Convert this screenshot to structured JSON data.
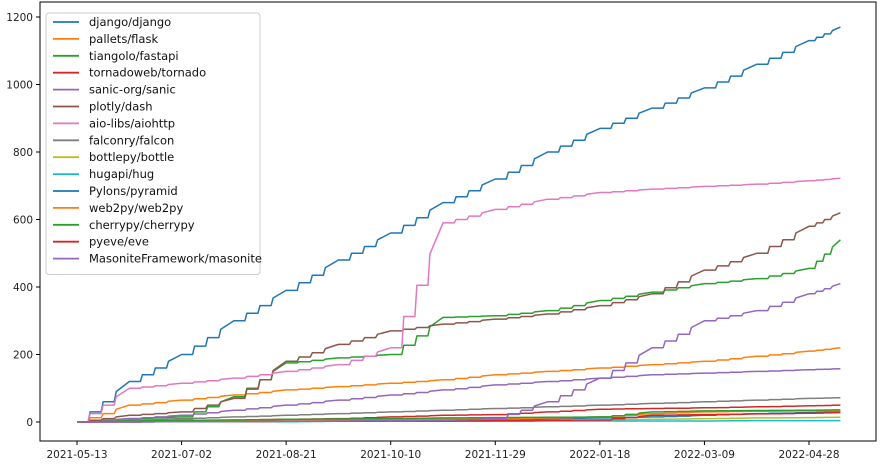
{
  "chart_data": {
    "type": "line",
    "title": "",
    "xlabel": "",
    "ylabel": "",
    "ylim": [
      -60,
      1230
    ],
    "yticks": [
      0,
      200,
      400,
      600,
      800,
      1000,
      1200
    ],
    "xticks": [
      "2021-05-13",
      "2021-07-02",
      "2021-08-21",
      "2021-10-10",
      "2021-11-29",
      "2022-01-18",
      "2022-03-09",
      "2022-04-28"
    ],
    "xlim_days": [
      -17,
      378
    ],
    "x_start_date": "2021-05-13",
    "grid": false,
    "legend_position": "upper left",
    "x": [
      0,
      25,
      50,
      75,
      100,
      125,
      150,
      175,
      200,
      225,
      250,
      275,
      300,
      325,
      350,
      365
    ],
    "series": [
      {
        "name": "django/django",
        "color": "#1f77b4",
        "values": [
          0,
          120,
          200,
          300,
          390,
          480,
          560,
          650,
          720,
          800,
          870,
          930,
          990,
          1060,
          1130,
          1170
        ]
      },
      {
        "name": "pallets/flask",
        "color": "#ff7f0e",
        "values": [
          0,
          50,
          65,
          80,
          95,
          105,
          115,
          125,
          140,
          150,
          160,
          170,
          180,
          195,
          210,
          220
        ]
      },
      {
        "name": "tiangolo/fastapi",
        "color": "#2ca02c",
        "values": [
          0,
          10,
          15,
          75,
          175,
          190,
          200,
          310,
          315,
          330,
          360,
          385,
          410,
          425,
          455,
          540
        ]
      },
      {
        "name": "tornadoweb/tornado",
        "color": "#d62728",
        "values": [
          0,
          2,
          4,
          6,
          8,
          10,
          15,
          20,
          22,
          30,
          38,
          40,
          42,
          45,
          48,
          50
        ]
      },
      {
        "name": "sanic-org/sanic",
        "color": "#9467bd",
        "values": [
          0,
          10,
          20,
          35,
          50,
          65,
          80,
          95,
          110,
          120,
          130,
          140,
          145,
          150,
          155,
          158
        ]
      },
      {
        "name": "plotly/dash",
        "color": "#8c564b",
        "values": [
          0,
          20,
          30,
          70,
          180,
          230,
          270,
          290,
          305,
          320,
          345,
          380,
          450,
          500,
          580,
          620
        ]
      },
      {
        "name": "aio-libs/aiohttp",
        "color": "#e377c2",
        "values": [
          0,
          100,
          115,
          130,
          150,
          170,
          220,
          590,
          630,
          660,
          680,
          690,
          698,
          705,
          715,
          722
        ]
      },
      {
        "name": "falconry/falcon",
        "color": "#7f7f7f",
        "values": [
          0,
          5,
          10,
          15,
          20,
          25,
          30,
          35,
          40,
          45,
          50,
          55,
          60,
          65,
          70,
          72
        ]
      },
      {
        "name": "bottlepy/bottle",
        "color": "#bcbd22",
        "values": [
          0,
          1,
          2,
          2,
          3,
          3,
          4,
          4,
          5,
          5,
          6,
          8,
          10,
          12,
          13,
          14
        ]
      },
      {
        "name": "hugapi/hug",
        "color": "#17becf",
        "values": [
          0,
          0,
          1,
          1,
          1,
          2,
          2,
          2,
          2,
          3,
          3,
          3,
          3,
          4,
          4,
          4
        ]
      },
      {
        "name": "Pylons/pyramid",
        "color": "#1f77b4",
        "values": [
          0,
          2,
          3,
          4,
          5,
          6,
          7,
          8,
          9,
          10,
          12,
          15,
          20,
          25,
          28,
          30
        ]
      },
      {
        "name": "web2py/web2py",
        "color": "#ff7f0e",
        "values": [
          0,
          2,
          3,
          4,
          5,
          6,
          7,
          8,
          10,
          12,
          15,
          25,
          30,
          32,
          33,
          34
        ]
      },
      {
        "name": "cherrypy/cherrypy",
        "color": "#2ca02c",
        "values": [
          0,
          3,
          5,
          6,
          8,
          9,
          10,
          12,
          13,
          14,
          15,
          30,
          33,
          34,
          35,
          36
        ]
      },
      {
        "name": "pyeve/eve",
        "color": "#d62728",
        "values": [
          0,
          0,
          1,
          1,
          2,
          2,
          3,
          3,
          4,
          5,
          6,
          20,
          22,
          24,
          26,
          28
        ]
      },
      {
        "name": "MasoniteFramework/masonite",
        "color": "#9467bd",
        "values": [
          0,
          0,
          1,
          1,
          2,
          3,
          4,
          5,
          10,
          60,
          130,
          220,
          300,
          330,
          380,
          410
        ]
      }
    ]
  }
}
